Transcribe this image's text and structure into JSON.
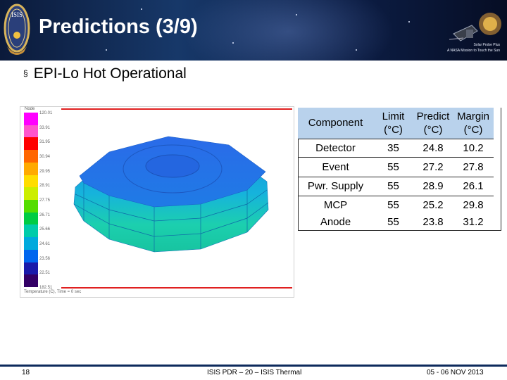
{
  "header": {
    "title": "Predictions (3/9)",
    "left_logo_text": "ISIS",
    "right_logo_line1": "Solar Probe Plus",
    "right_logo_line2": "A NASA Mission to Touch the Sun"
  },
  "bullet": {
    "marker": "§",
    "text": "EPI-Lo Hot Operational"
  },
  "thermal_plot": {
    "legend_title": "Node",
    "legend_labels": [
      "120.01",
      "33.91",
      "31.95",
      "30.94",
      "29.95",
      "28.91",
      "27.75",
      "26.71",
      "25.66",
      "24.61",
      "23.56",
      "22.51",
      "182.51"
    ],
    "legend_colors": [
      "#ff00ff",
      "#ff55cc",
      "#ff0000",
      "#ff6600",
      "#ffaa00",
      "#ffdd00",
      "#ccee00",
      "#55dd00",
      "#00cc44",
      "#00ccaa",
      "#00aadd",
      "#0066ee",
      "#1a1aaa",
      "#330066"
    ],
    "footer": "Temperature (C), Time = 0 sec"
  },
  "table": {
    "headers": [
      {
        "line1": "Component",
        "line2": ""
      },
      {
        "line1": "Limit",
        "line2": "(°C)"
      },
      {
        "line1": "Predict",
        "line2": "(°C)"
      },
      {
        "line1": "Margin",
        "line2": "(°C)"
      }
    ],
    "rows": [
      {
        "component": "Detector",
        "limit": "35",
        "predict": "24.8",
        "margin": "10.2"
      },
      {
        "component": "Event",
        "limit": "55",
        "predict": "27.2",
        "margin": "27.8"
      },
      {
        "component": "Pwr. Supply",
        "limit": "55",
        "predict": "28.9",
        "margin": "26.1"
      },
      {
        "component": "MCP",
        "limit": "55",
        "predict": "25.2",
        "margin": "29.8"
      },
      {
        "component": "Anode",
        "limit": "55",
        "predict": "23.8",
        "margin": "31.2"
      }
    ]
  },
  "footer": {
    "page_number": "18",
    "center_text": "ISIS PDR – 20 – ISIS Thermal",
    "date": "05 - 06 NOV 2013"
  },
  "colors": {
    "banner": "#0c1d44",
    "table_header": "#b9d2ec",
    "footer_line": "#0d2a5c",
    "plot_border": "#e02020"
  }
}
